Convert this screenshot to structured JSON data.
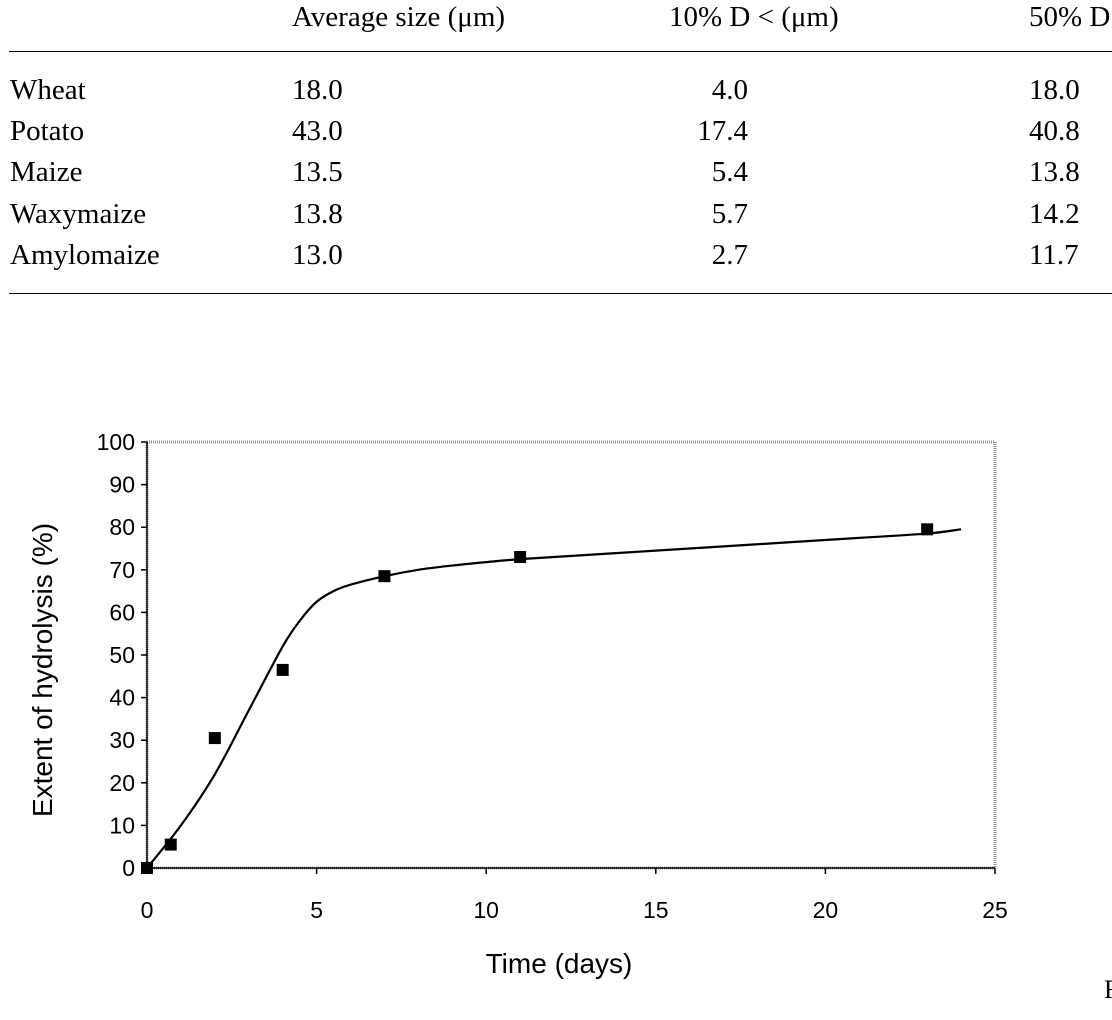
{
  "table": {
    "headers": [
      "",
      "Average size (μm)",
      "10% D <  (μm)",
      "50% D"
    ],
    "rows": [
      [
        "Wheat",
        "18.0",
        "4.0",
        "18.0"
      ],
      [
        "Potato",
        "43.0",
        "17.4",
        "40.8"
      ],
      [
        "Maize",
        "13.5",
        "5.4",
        "13.8"
      ],
      [
        "Waxymaize",
        "13.8",
        "5.7",
        "14.2"
      ],
      [
        "Amylomaize",
        "13.0",
        "2.7",
        "11.7"
      ]
    ]
  },
  "chart_data": {
    "type": "line",
    "xlabel": "Time (days)",
    "ylabel": "Extent of hydrolysis (%)",
    "xlim": [
      0,
      25
    ],
    "ylim": [
      0,
      100
    ],
    "xticks": [
      "0",
      "5",
      "10",
      "15",
      "20",
      "25"
    ],
    "yticks": [
      "0",
      "10",
      "20",
      "30",
      "40",
      "50",
      "60",
      "70",
      "80",
      "90",
      "100"
    ],
    "grid": false,
    "series": [
      {
        "kind": "measured",
        "marker": "square",
        "x": [
          0,
          0.7,
          2,
          4,
          7,
          11,
          23
        ],
        "y": [
          0,
          5.5,
          30.5,
          46.5,
          68.5,
          73,
          79.5
        ]
      },
      {
        "kind": "fitted-curve",
        "x": [
          0,
          1,
          2,
          3,
          4,
          4.5,
          5,
          5.5,
          6,
          7,
          8,
          9,
          10,
          11,
          13,
          15,
          17,
          19,
          21,
          23,
          24
        ],
        "y": [
          0,
          10,
          22,
          37,
          52,
          58,
          62.5,
          65,
          66.5,
          68.5,
          70,
          71,
          71.8,
          72.5,
          73.5,
          74.5,
          75.5,
          76.5,
          77.5,
          78.5,
          79.5
        ]
      }
    ]
  },
  "figure_edge": "F"
}
